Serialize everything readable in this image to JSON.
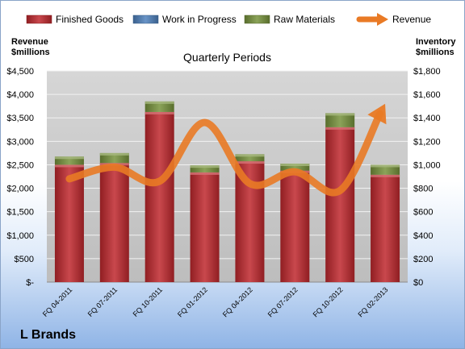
{
  "chart_data": {
    "type": "bar",
    "subtitle": "Quarterly Periods",
    "categories": [
      "FQ 04-2011",
      "FQ 07-2011",
      "FQ 10-2011",
      "FQ 01-2012",
      "FQ 04-2012",
      "FQ 07-2012",
      "FQ 10-2012",
      "FQ 02-2013"
    ],
    "left_axis": {
      "label_line1": "Revenue",
      "label_line2": "$millions",
      "ylim": [
        0,
        4500
      ],
      "ticks": [
        "$-",
        "$500",
        "$1,000",
        "$1,500",
        "$2,000",
        "$2,500",
        "$3,000",
        "$3,500",
        "$4,000",
        "$4,500"
      ]
    },
    "right_axis": {
      "label_line1": "Inventory",
      "label_line2": "$millions",
      "ylim": [
        0,
        1800
      ],
      "ticks": [
        "$0",
        "$200",
        "$400",
        "$600",
        "$800",
        "$1,000",
        "$1,200",
        "$1,400",
        "$1,600",
        "$1,800"
      ]
    },
    "series": [
      {
        "name": "Finished Goods",
        "axis": "right",
        "kind": "stacked-bar",
        "color": "#c0282d",
        "values": [
          1000,
          1015,
          1450,
          935,
          1030,
          950,
          1320,
          915
        ]
      },
      {
        "name": "Work in Progress",
        "axis": "right",
        "kind": "stacked-bar",
        "color": "#4f81bd",
        "values": [
          0,
          0,
          0,
          0,
          0,
          0,
          0,
          0
        ]
      },
      {
        "name": "Raw Materials",
        "axis": "right",
        "kind": "stacked-bar",
        "color": "#77933c",
        "values": [
          70,
          85,
          90,
          60,
          60,
          60,
          120,
          85
        ]
      },
      {
        "name": "Revenue",
        "axis": "left",
        "kind": "line",
        "color": "#e97a25",
        "values": [
          2200,
          2450,
          2150,
          3400,
          2100,
          2350,
          1950,
          3800
        ]
      }
    ],
    "grid": true,
    "legend": "top"
  },
  "company": "L Brands"
}
